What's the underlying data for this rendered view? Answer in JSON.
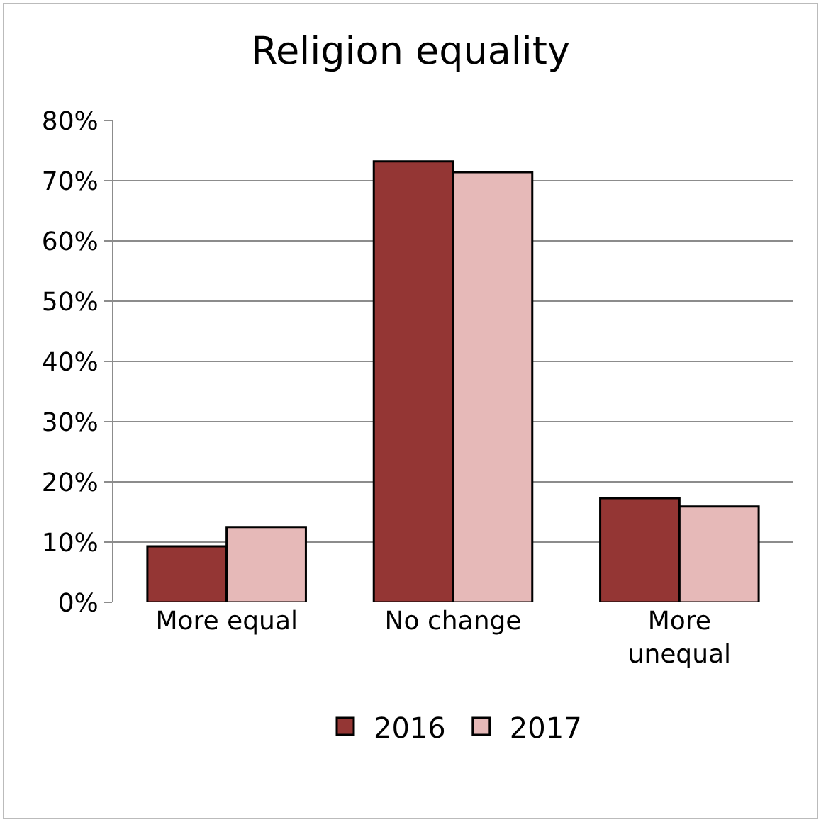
{
  "chart_data": {
    "type": "bar",
    "title": "Religion equality",
    "categories": [
      "More equal",
      "No change",
      "More unequal"
    ],
    "series": [
      {
        "name": "2016",
        "color": "#943634",
        "values": [
          9.3,
          73.2,
          17.3
        ]
      },
      {
        "name": "2017",
        "color": "#e6b9b8",
        "values": [
          12.5,
          71.4,
          15.9
        ]
      }
    ],
    "ylim": [
      0,
      80
    ],
    "yticks": [
      {
        "value": 0,
        "label": "0%"
      },
      {
        "value": 10,
        "label": "10%"
      },
      {
        "value": 20,
        "label": "20%"
      },
      {
        "value": 30,
        "label": "30%"
      },
      {
        "value": 40,
        "label": "40%"
      },
      {
        "value": 50,
        "label": "50%"
      },
      {
        "value": 60,
        "label": "60%"
      },
      {
        "value": 70,
        "label": "70%"
      },
      {
        "value": 80,
        "label": "80%"
      }
    ],
    "grid": "y",
    "legend": "bottom"
  }
}
